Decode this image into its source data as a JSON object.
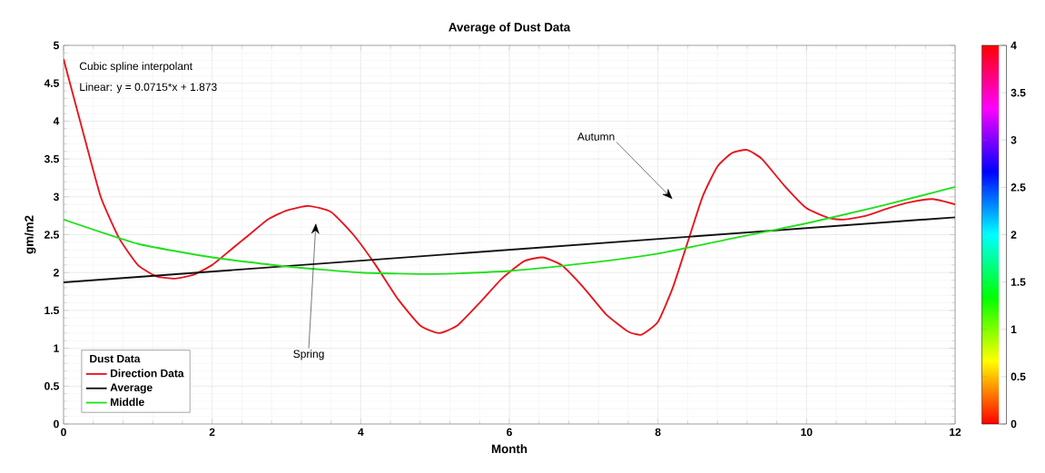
{
  "chart_data": {
    "type": "line",
    "title": "Average of Dust Data",
    "xlabel": "Month",
    "ylabel": "gm/m2",
    "legend_title": "Dust Data",
    "xlim": [
      0,
      12
    ],
    "ylim": [
      0,
      5
    ],
    "xticks": [
      0,
      2,
      4,
      6,
      8,
      10,
      12
    ],
    "yticks": [
      0,
      0.5,
      1,
      1.5,
      2,
      2.5,
      3,
      3.5,
      4,
      4.5,
      5
    ],
    "grid": true,
    "legend": "bottom left",
    "line_style": "solid",
    "marker": "none",
    "clim": [
      0,
      4
    ],
    "cticks": [
      0,
      0.5,
      1,
      1.5,
      2,
      2.5,
      3,
      3.5,
      4
    ],
    "annotations": [
      "Cubic spline interpolant",
      "Linear:  y = 0.0715*x + 1.873",
      "Spring",
      "Autumn"
    ],
    "series": [
      {
        "name": "Direction Data",
        "color": "#e8141c",
        "x": [
          0,
          0.25,
          0.5,
          0.75,
          1,
          1.25,
          1.5,
          1.75,
          2,
          2.25,
          2.5,
          2.75,
          3,
          3.3,
          3.6,
          3.9,
          4.2,
          4.5,
          4.8,
          5.05,
          5.3,
          5.6,
          5.9,
          6.2,
          6.45,
          6.7,
          7,
          7.3,
          7.6,
          7.78,
          8,
          8.2,
          8.4,
          8.6,
          8.8,
          9,
          9.2,
          9.4,
          9.7,
          10,
          10.3,
          10.5,
          10.8,
          11.1,
          11.4,
          11.7,
          12
        ],
        "values": [
          4.82,
          3.9,
          3.0,
          2.45,
          2.1,
          1.95,
          1.92,
          1.97,
          2.1,
          2.3,
          2.5,
          2.7,
          2.82,
          2.88,
          2.8,
          2.5,
          2.1,
          1.65,
          1.3,
          1.2,
          1.3,
          1.6,
          1.92,
          2.15,
          2.2,
          2.1,
          1.8,
          1.45,
          1.22,
          1.18,
          1.35,
          1.8,
          2.4,
          3.0,
          3.4,
          3.58,
          3.62,
          3.5,
          3.15,
          2.85,
          2.72,
          2.7,
          2.75,
          2.85,
          2.93,
          2.97,
          2.9
        ]
      },
      {
        "name": "Average",
        "color": "#111111",
        "x": [
          0,
          12
        ],
        "values": [
          1.87,
          2.73
        ]
      },
      {
        "name": "Middle",
        "color": "#22e01e",
        "x": [
          0,
          1,
          2,
          3,
          4,
          5,
          6,
          7,
          8,
          9,
          10,
          11,
          12
        ],
        "values": [
          2.7,
          2.38,
          2.2,
          2.08,
          2.0,
          1.98,
          2.02,
          2.12,
          2.25,
          2.45,
          2.65,
          2.88,
          3.13
        ]
      }
    ]
  }
}
